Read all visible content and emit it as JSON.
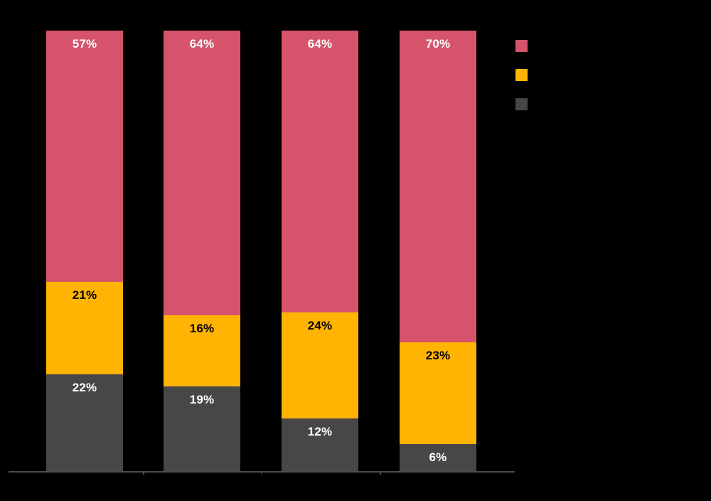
{
  "page": {
    "background": "#000000"
  },
  "chart_data": {
    "type": "bar",
    "stacked": true,
    "orientation": "vertical",
    "title": "",
    "xlabel": "",
    "ylabel": "",
    "categories": [
      "",
      "",
      "",
      ""
    ],
    "series": [
      {
        "name": "",
        "color": "#D5546B",
        "label_color": "#FFFFFF",
        "values": [
          57,
          64,
          64,
          70
        ]
      },
      {
        "name": "",
        "color": "#FFB404",
        "label_color": "#000000",
        "values": [
          21,
          16,
          24,
          23
        ]
      },
      {
        "name": "",
        "color": "#474747",
        "label_color": "#FFFFFF",
        "values": [
          22,
          19,
          12,
          6
        ]
      }
    ],
    "stack_order_top_to_bottom": [
      0,
      1,
      2
    ],
    "value_label_format": "{v}%",
    "value_labels_visible": true,
    "ylim": [
      0,
      100
    ],
    "gridlines": false,
    "legend": {
      "position": "top-right",
      "swatch_colors": [
        "#D5546B",
        "#FFB404",
        "#474747"
      ]
    },
    "axis": {
      "baseline_color": "#4D4D4D",
      "tick_color": "#4D4D4D",
      "tick_count": 3
    }
  }
}
